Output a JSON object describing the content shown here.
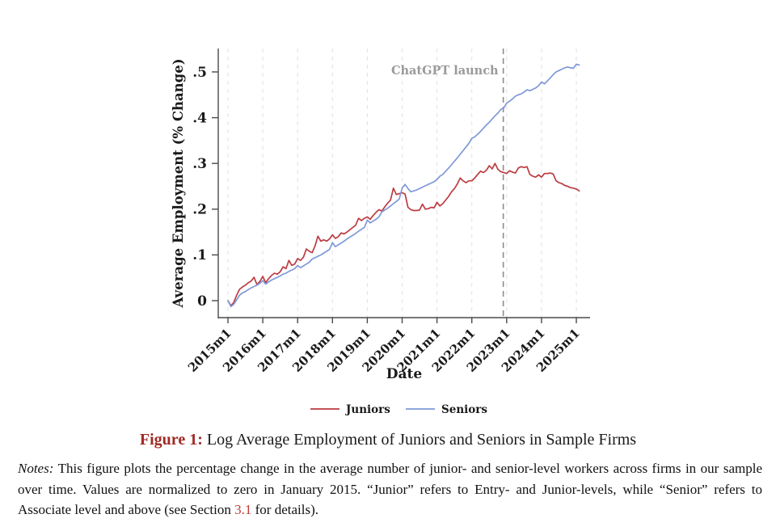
{
  "figure": {
    "caption_label": "Figure 1:",
    "caption_text": " Log Average Employment of Juniors and Seniors in Sample Firms",
    "notes_label": "Notes:",
    "notes_part1": " This figure plots the percentage change in the average number of junior- and senior-level workers across firms in our sample over time.  Values are normalized to zero in January 2015.  “Junior” refers to Entry- and Junior-levels, while “Senior” refers to Associate level and above (see Section ",
    "notes_link": "3.1",
    "notes_part2": " for details)."
  },
  "chart_data": {
    "type": "line",
    "xlabel": "Date",
    "ylabel": "Average Employment (% Change)",
    "x_start": "2015m1",
    "x_tick_labels": [
      "2015m1",
      "2016m1",
      "2017m1",
      "2018m1",
      "2019m1",
      "2020m1",
      "2021m1",
      "2022m1",
      "2023m1",
      "2024m1",
      "2025m1"
    ],
    "y_tick_values": [
      0,
      0.1,
      0.2,
      0.3,
      0.4,
      0.5
    ],
    "y_tick_labels": [
      "0",
      ".1",
      ".2",
      ".3",
      ".4",
      ".5"
    ],
    "ylim": [
      -0.03,
      0.55
    ],
    "grid": "vertical-dashed",
    "annotation": {
      "label": "ChatGPT launch",
      "date": "2022m11",
      "style": "vertical-dashed-line"
    },
    "legend_position": "bottom-center",
    "series": [
      {
        "name": "Juniors",
        "color": "#bc3c41",
        "values": [
          0.0,
          -0.011,
          -0.004,
          0.012,
          0.025,
          0.03,
          0.034,
          0.039,
          0.043,
          0.051,
          0.035,
          0.042,
          0.053,
          0.039,
          0.048,
          0.055,
          0.06,
          0.058,
          0.063,
          0.074,
          0.07,
          0.088,
          0.077,
          0.08,
          0.092,
          0.088,
          0.095,
          0.113,
          0.108,
          0.105,
          0.12,
          0.141,
          0.13,
          0.133,
          0.13,
          0.135,
          0.144,
          0.136,
          0.14,
          0.148,
          0.146,
          0.15,
          0.155,
          0.16,
          0.165,
          0.18,
          0.175,
          0.18,
          0.183,
          0.178,
          0.186,
          0.193,
          0.199,
          0.196,
          0.205,
          0.213,
          0.22,
          0.246,
          0.232,
          0.234,
          0.236,
          0.233,
          0.204,
          0.199,
          0.197,
          0.197,
          0.198,
          0.211,
          0.2,
          0.201,
          0.204,
          0.203,
          0.215,
          0.207,
          0.212,
          0.22,
          0.228,
          0.238,
          0.245,
          0.255,
          0.268,
          0.262,
          0.258,
          0.262,
          0.262,
          0.268,
          0.276,
          0.283,
          0.28,
          0.285,
          0.295,
          0.288,
          0.3,
          0.287,
          0.282,
          0.28,
          0.278,
          0.284,
          0.281,
          0.279,
          0.29,
          0.293,
          0.291,
          0.293,
          0.276,
          0.272,
          0.27,
          0.275,
          0.27,
          0.278,
          0.278,
          0.279,
          0.277,
          0.262,
          0.258,
          0.256,
          0.252,
          0.25,
          0.247,
          0.246,
          0.244,
          0.24
        ]
      },
      {
        "name": "Seniors",
        "color": "#7f99d9",
        "values": [
          0.0,
          -0.013,
          -0.008,
          0.002,
          0.012,
          0.017,
          0.02,
          0.024,
          0.028,
          0.031,
          0.034,
          0.038,
          0.044,
          0.036,
          0.041,
          0.045,
          0.048,
          0.051,
          0.054,
          0.058,
          0.06,
          0.064,
          0.067,
          0.07,
          0.077,
          0.072,
          0.076,
          0.08,
          0.084,
          0.091,
          0.094,
          0.097,
          0.1,
          0.104,
          0.108,
          0.112,
          0.127,
          0.118,
          0.122,
          0.126,
          0.13,
          0.135,
          0.139,
          0.143,
          0.147,
          0.152,
          0.156,
          0.16,
          0.176,
          0.17,
          0.174,
          0.178,
          0.183,
          0.194,
          0.198,
          0.202,
          0.207,
          0.212,
          0.217,
          0.222,
          0.246,
          0.254,
          0.245,
          0.238,
          0.24,
          0.242,
          0.245,
          0.248,
          0.251,
          0.254,
          0.257,
          0.26,
          0.265,
          0.272,
          0.276,
          0.283,
          0.29,
          0.297,
          0.305,
          0.312,
          0.32,
          0.328,
          0.336,
          0.344,
          0.355,
          0.358,
          0.364,
          0.37,
          0.377,
          0.384,
          0.39,
          0.397,
          0.404,
          0.41,
          0.418,
          0.421,
          0.432,
          0.436,
          0.441,
          0.447,
          0.45,
          0.452,
          0.456,
          0.461,
          0.459,
          0.462,
          0.465,
          0.47,
          0.478,
          0.474,
          0.48,
          0.487,
          0.494,
          0.5,
          0.503,
          0.506,
          0.509,
          0.511,
          0.509,
          0.508,
          0.517,
          0.515
        ]
      }
    ]
  },
  "colors": {
    "juniors_line": "#bc3c41",
    "seniors_line": "#7f99d9",
    "annotation_line": "#8c8c8c",
    "annotation_text": "#9a9a9a",
    "gridline": "#e4e4e8",
    "axis": "#4a4a4a",
    "caption_label": "#9e2b25",
    "notes_link": "#c13b33"
  }
}
